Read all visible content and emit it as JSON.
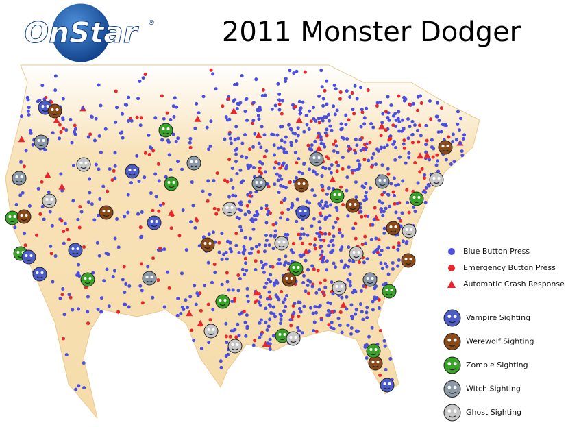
{
  "logo": {
    "text": "OnStar",
    "mark": "®"
  },
  "title": "2011 Monster Dodger",
  "legend": {
    "events": [
      {
        "label": "Blue Button Press",
        "color": "#4a4ee0",
        "shape": "circle"
      },
      {
        "label": "Emergency Button Press",
        "color": "#e8262c",
        "shape": "circle"
      },
      {
        "label": "Automatic Crash Response",
        "color": "#e8262c",
        "shape": "triangle"
      }
    ],
    "monsters": [
      {
        "label": "Vampire Sighting",
        "color": "#4c5cc8"
      },
      {
        "label": "Werewolf Sighting",
        "color": "#8a4a1a"
      },
      {
        "label": "Zombie Sighting",
        "color": "#3aa32a"
      },
      {
        "label": "Witch Sighting",
        "color": "#8c9aa8"
      },
      {
        "label": "Ghost Sighting",
        "color": "#c8c8c8"
      }
    ]
  }
}
